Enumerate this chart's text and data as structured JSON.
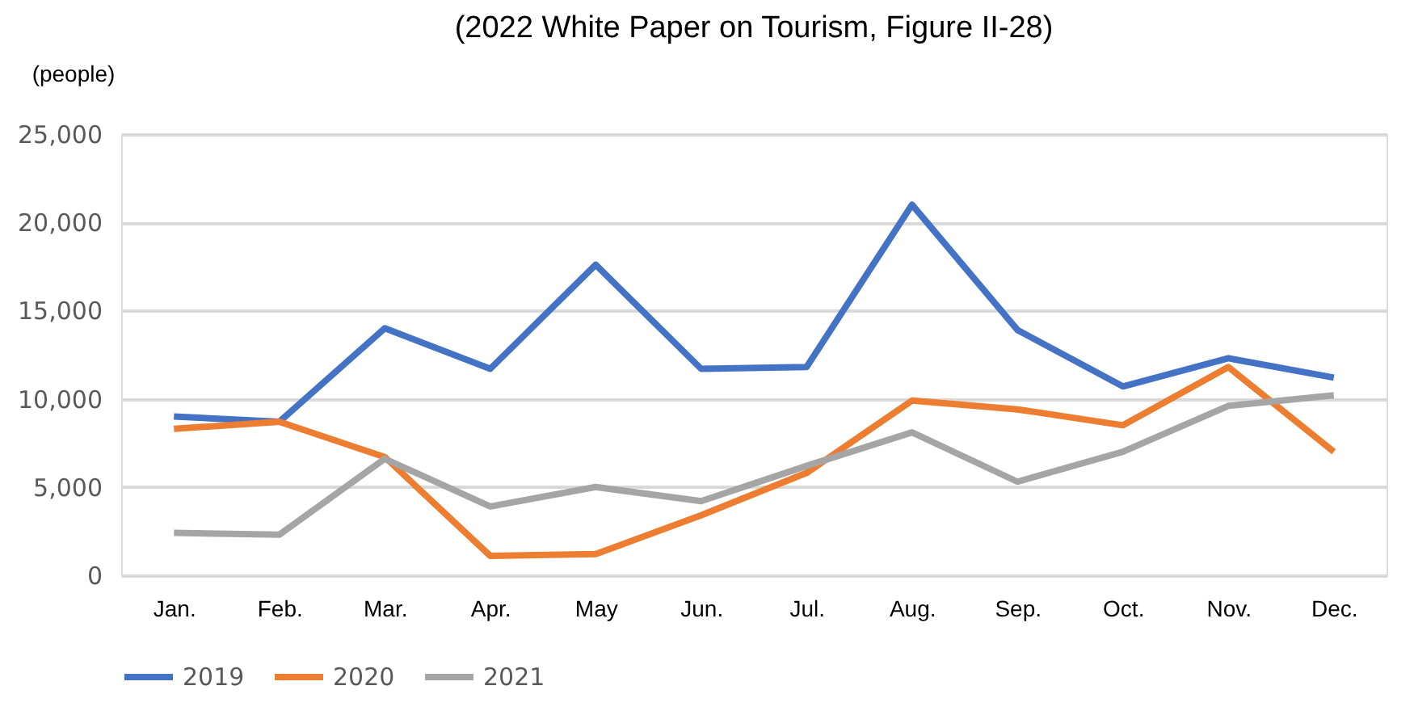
{
  "chart_data": {
    "type": "line",
    "title": "(2022 White Paper on Tourism, Figure II-28)",
    "ylabel": "(people)",
    "categories": [
      "Jan.",
      "Feb.",
      "Mar.",
      "Apr.",
      "May",
      "Jun.",
      "Jul.",
      "Aug.",
      "Sep.",
      "Oct.",
      "Nov.",
      "Dec."
    ],
    "series": [
      {
        "name": "2019",
        "color": "#4472c4",
        "values": [
          9000,
          8700,
          14000,
          11700,
          17600,
          11700,
          11800,
          21000,
          13900,
          10700,
          12300,
          11200
        ]
      },
      {
        "name": "2020",
        "color": "#ed7d31",
        "values": [
          8300,
          8700,
          6700,
          1100,
          1200,
          3400,
          5800,
          9900,
          9400,
          8500,
          11800,
          7000
        ]
      },
      {
        "name": "2021",
        "color": "#a5a5a5",
        "values": [
          2400,
          2300,
          6600,
          3900,
          5000,
          4200,
          6200,
          8100,
          5300,
          7000,
          9600,
          10200
        ]
      }
    ],
    "ylim": [
      0,
      25000
    ],
    "yticks": [
      {
        "value": 0,
        "label": "0"
      },
      {
        "value": 5000,
        "label": "5,000"
      },
      {
        "value": 10000,
        "label": "10,000"
      },
      {
        "value": 15000,
        "label": "15,000"
      },
      {
        "value": 20000,
        "label": "20,000"
      },
      {
        "value": 25000,
        "label": "25,000"
      }
    ],
    "grid": "y",
    "legend": "bottom",
    "line_style": "solid",
    "marker": "none"
  }
}
